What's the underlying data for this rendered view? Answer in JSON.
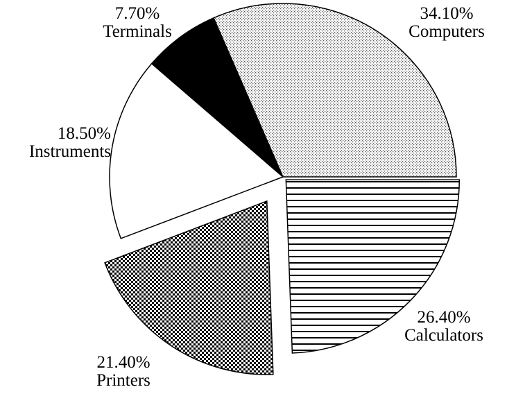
{
  "chart_data": {
    "type": "pie",
    "categories": [
      "Calculators",
      "Printers",
      "Instruments",
      "Terminals",
      "Computers"
    ],
    "values": [
      26.4,
      21.4,
      18.5,
      7.7,
      34.1
    ],
    "value_labels": [
      "26.40%",
      "21.40%",
      "18.50%",
      "7.70%",
      "34.10%"
    ],
    "fills": [
      "hlines",
      "checker",
      "white",
      "black",
      "dots"
    ],
    "exploded": [
      true,
      true,
      false,
      false,
      false
    ]
  }
}
